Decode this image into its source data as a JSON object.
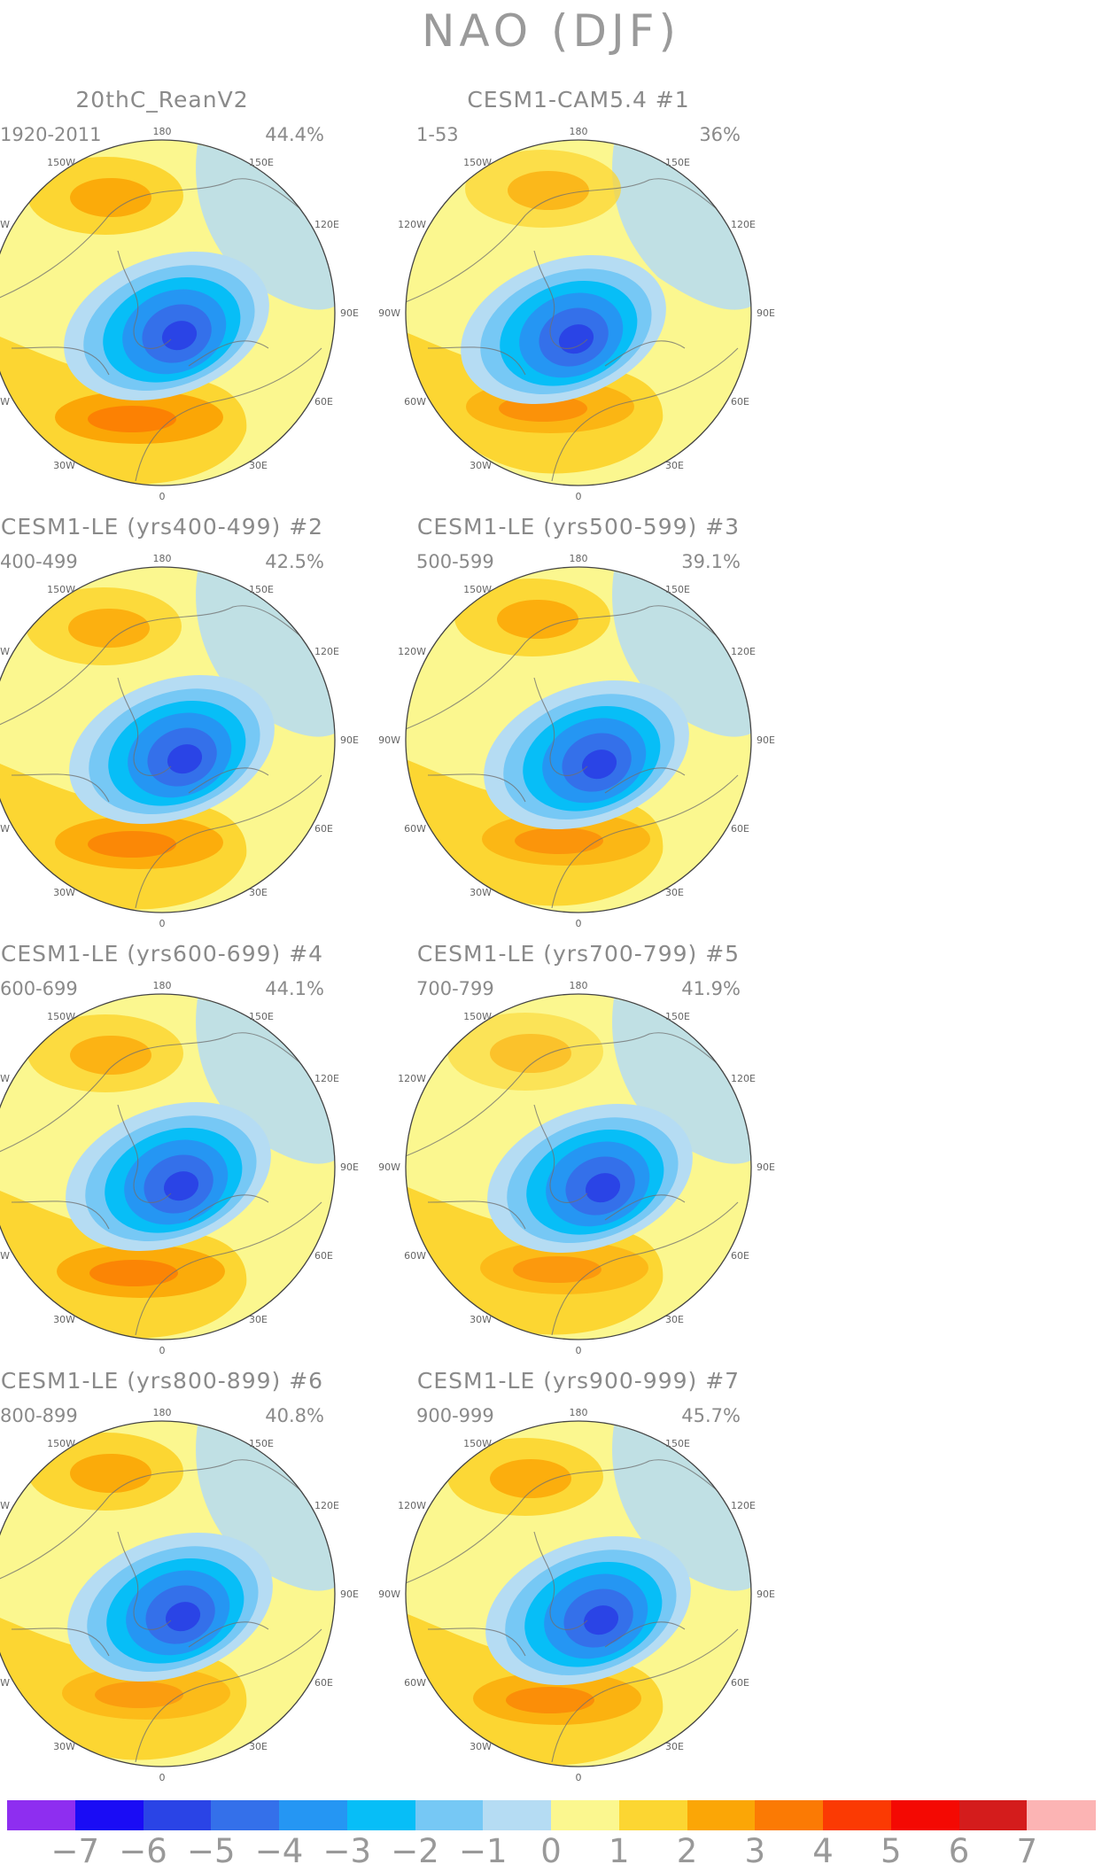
{
  "title": "NAO (DJF)",
  "panels": [
    {
      "title": "20thC_ReanV2",
      "period": "1920-2011",
      "percent": "44.4%",
      "variant": 0
    },
    {
      "title": "CESM1-CAM5.4      #1",
      "period": "1-53",
      "percent": "36%",
      "variant": 1
    },
    {
      "title": "CESM1-LE (yrs400-499) #2",
      "period": "400-499",
      "percent": "42.5%",
      "variant": 2
    },
    {
      "title": "CESM1-LE (yrs500-599) #3",
      "period": "500-599",
      "percent": "39.1%",
      "variant": 3
    },
    {
      "title": "CESM1-LE (yrs600-699) #4",
      "period": "600-699",
      "percent": "44.1%",
      "variant": 4
    },
    {
      "title": "CESM1-LE (yrs700-799) #5",
      "period": "700-799",
      "percent": "41.9%",
      "variant": 5
    },
    {
      "title": "CESM1-LE (yrs800-899) #6",
      "period": "800-899",
      "percent": "40.8%",
      "variant": 6
    },
    {
      "title": "CESM1-LE (yrs900-999) #7",
      "period": "900-999",
      "percent": "45.7%",
      "variant": 7
    }
  ],
  "map_labels": {
    "top": "180",
    "bottom": "0",
    "upper_left": "150W",
    "upper_right": "150E",
    "mid_upper_left": "120W",
    "mid_upper_right": "120E",
    "left": "90W",
    "right": "90E",
    "mid_lower_left": "60W",
    "mid_lower_right": "60E",
    "lower_left": "30W",
    "lower_right": "30E"
  },
  "colorbar": {
    "labels": [
      "−7",
      "−6",
      "−5",
      "−4",
      "−3",
      "−2",
      "−1",
      "0",
      "1",
      "2",
      "3",
      "4",
      "5",
      "6",
      "7"
    ],
    "colors": [
      "#8e2ef0",
      "#1a0cf5",
      "#2a44e6",
      "#3470ea",
      "#2596f3",
      "#07bef7",
      "#76c8f5",
      "#b5dcf3",
      "#fbf78f",
      "#fcd632",
      "#fba606",
      "#fb7a04",
      "#fb3a03",
      "#f40903",
      "#d41c1c",
      "#fcb4b4"
    ]
  },
  "colors": {
    "positive_weak": "#fbf78f",
    "positive_1": "#fcd632",
    "positive_2": "#fba606",
    "positive_3": "#fb7a04",
    "negative_weak": "#b5dcf3",
    "negative_1": "#76c8f5",
    "negative_2": "#07bef7",
    "negative_3": "#2596f3",
    "negative_4": "#3470ea",
    "negative_5": "#2a44e6"
  }
}
